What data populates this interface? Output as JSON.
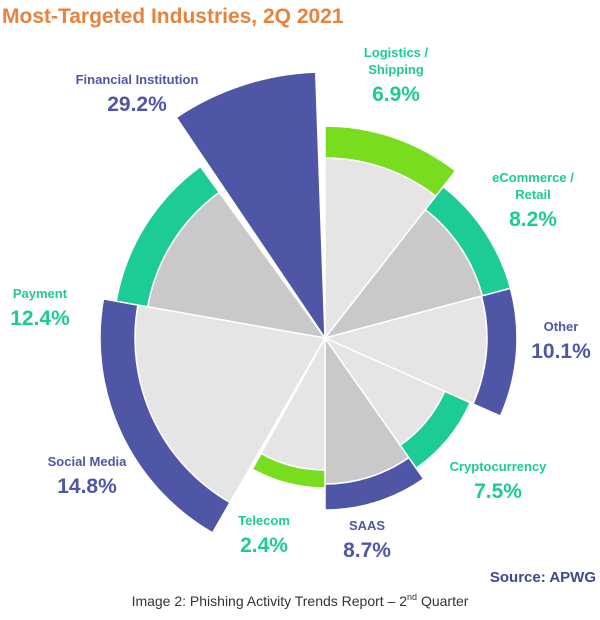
{
  "chart_data": {
    "type": "pie",
    "variant": "polar-area",
    "title": "Most-Targeted Industries, 2Q 2021",
    "source": "Source: APWG",
    "caption": {
      "prefix": "Image 2: Phishing Activity Trends Report – 2",
      "sup": "nd",
      "suffix": " Quarter"
    },
    "segments": [
      {
        "label": [
          "Logistics /",
          "Shipping"
        ],
        "value_label": "6.9%",
        "value": 6.9,
        "color": "#79dd1f"
      },
      {
        "label": [
          "eCommerce /",
          "Retail"
        ],
        "value_label": "8.2%",
        "value": 8.2,
        "color": "#1ccb96"
      },
      {
        "label": [
          "Other"
        ],
        "value_label": "10.1%",
        "value": 10.1,
        "color": "#4f56a5"
      },
      {
        "label": [
          "Cryptocurrency"
        ],
        "value_label": "7.5%",
        "value": 7.5,
        "color": "#1ccb96"
      },
      {
        "label": [
          "SAAS"
        ],
        "value_label": "8.7%",
        "value": 8.7,
        "color": "#4f56a5"
      },
      {
        "label": [
          "Telecom"
        ],
        "value_label": "2.4%",
        "value": 2.4,
        "color": "#79dd1f"
      },
      {
        "label": [
          "Social Media"
        ],
        "value_label": "14.8%",
        "value": 14.8,
        "color": "#4f56a5"
      },
      {
        "label": [
          "Payment"
        ],
        "value_label": "12.4%",
        "value": 12.4,
        "color": "#1ccb96"
      },
      {
        "label": [
          "Financial Institution"
        ],
        "value_label": "29.2%",
        "value": 29.2,
        "color": "#4f56a5"
      }
    ],
    "colors": {
      "title": "#e8823c",
      "source": "#3f4a8c",
      "caption": "#333333",
      "inner_light": "#e5e5e5",
      "inner_dark": "#c9c9c9",
      "label_blue": "#4f56a5",
      "label_teal": "#1ccb96"
    }
  }
}
